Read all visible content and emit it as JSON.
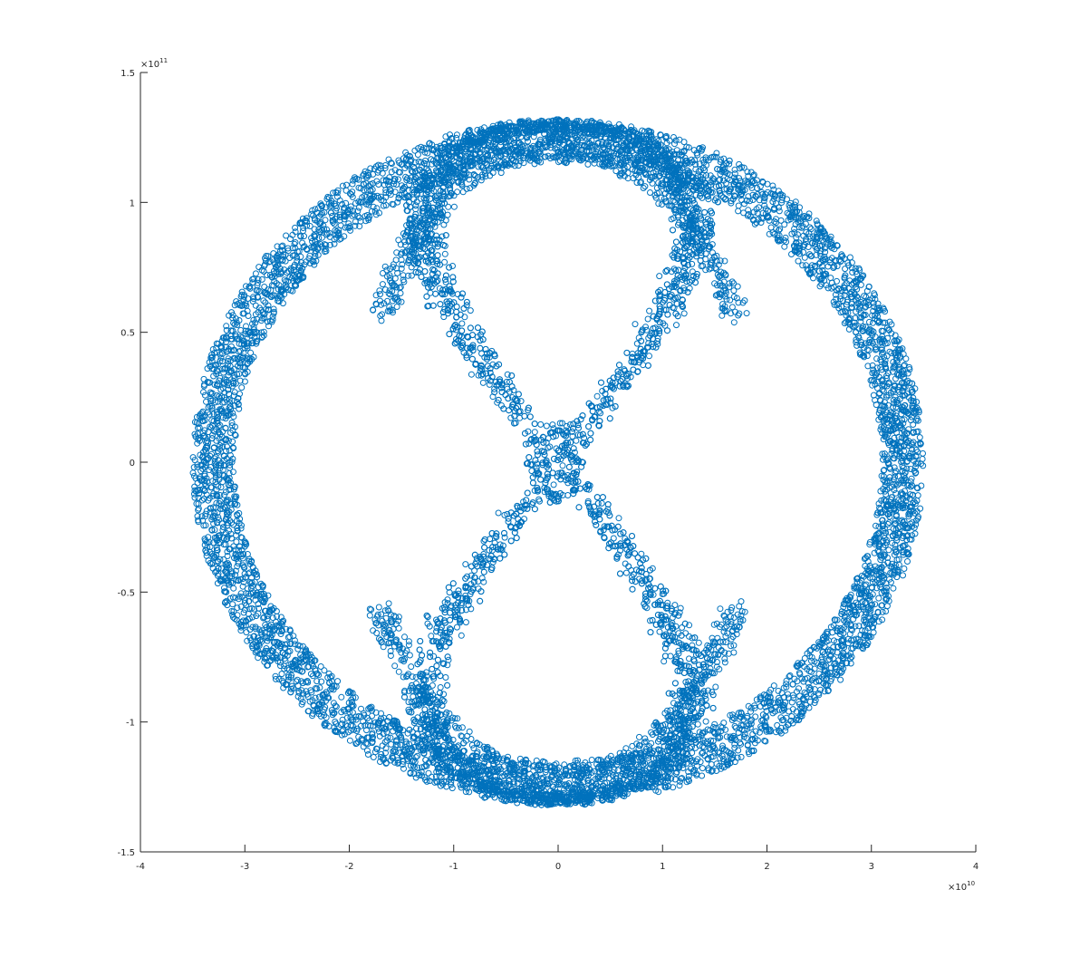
{
  "chart_data": {
    "type": "scatter",
    "title": "",
    "xlabel": "",
    "ylabel": "",
    "xlim": [
      -40000000000.0,
      40000000000.0
    ],
    "ylim": [
      -150000000000.0,
      150000000000.0
    ],
    "x_ticks": [
      -4,
      -3,
      -2,
      -1,
      0,
      1,
      2,
      3,
      4
    ],
    "y_ticks": [
      -1.5,
      -1,
      -0.5,
      0,
      0.5,
      1,
      1.5
    ],
    "x_tick_labels": [
      "-4",
      "-3",
      "-2",
      "-1",
      "0",
      "1",
      "2",
      "3",
      "4"
    ],
    "y_tick_labels": [
      "-1.5",
      "-1",
      "-0.5",
      "0",
      "0.5",
      "1",
      "1.5"
    ],
    "x_exponent": {
      "base": "×10",
      "power": "10"
    },
    "y_exponent": {
      "base": "×10",
      "power": "11"
    },
    "x_tick_scale": 10000000000.0,
    "y_tick_scale": 100000000000.0,
    "grid": false,
    "marker": "circle-open",
    "series": [
      {
        "color": "#0072BD",
        "shape": "outer-ring",
        "center": [
          0,
          0
        ],
        "rx_range": [
          31000000000.0,
          35000000000.0
        ],
        "ry_range": [
          115000000000.0,
          132000000000.0
        ]
      },
      {
        "color": "#0072BD",
        "shape": "inner-figure-eight",
        "x_amplitude_range": [
          15000000000.0,
          18000000000.0
        ],
        "y_extent": [
          -130000000000.0,
          130000000000.0
        ],
        "inner_crossings_y": [
          -13000000000.0,
          0,
          13000000000.0
        ]
      }
    ]
  }
}
